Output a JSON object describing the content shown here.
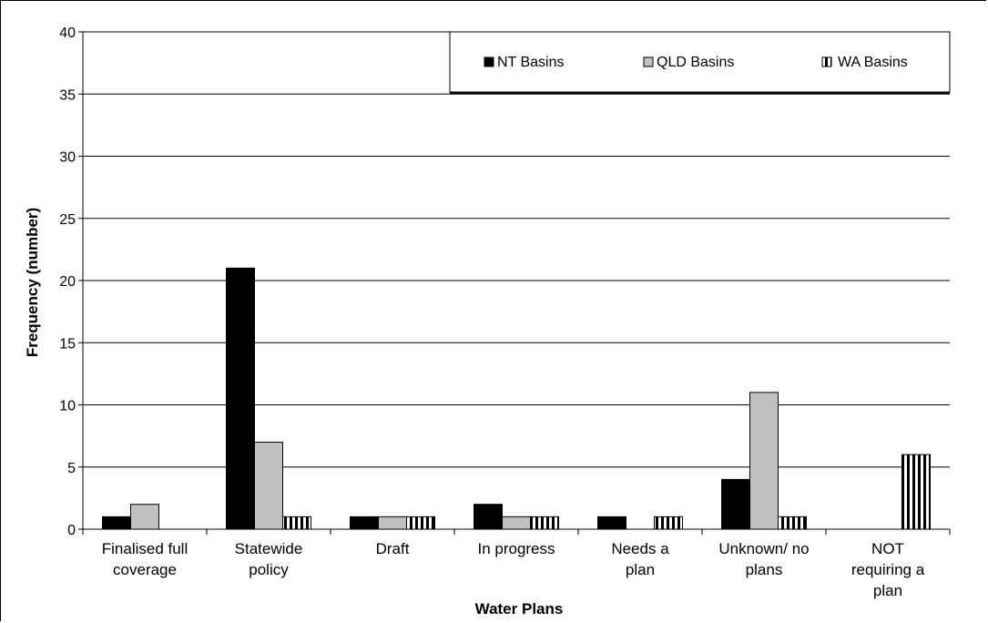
{
  "chart_data": {
    "type": "bar",
    "xlabel": "Water Plans",
    "ylabel": "Frequency (number)",
    "ylim": [
      0,
      40
    ],
    "yticks": [
      0,
      5,
      10,
      15,
      20,
      25,
      30,
      35,
      40
    ],
    "grid": true,
    "legend_position": "top-right",
    "categories": [
      [
        "Finalised full",
        "coverage"
      ],
      [
        "Statewide",
        "policy"
      ],
      [
        "Draft"
      ],
      [
        "In progress"
      ],
      [
        "Needs a",
        "plan"
      ],
      [
        "Unknown/ no",
        "plans"
      ],
      [
        "NOT",
        "requiring a",
        "plan"
      ]
    ],
    "series": [
      {
        "name": "NT Basins",
        "values": [
          1,
          21,
          1,
          2,
          1,
          4,
          0
        ],
        "color": "#000000",
        "pattern": "solid"
      },
      {
        "name": "QLD Basins",
        "values": [
          2,
          7,
          1,
          1,
          0,
          11,
          0
        ],
        "color": "#c0c0c0",
        "pattern": "solid"
      },
      {
        "name": "WA Basins",
        "values": [
          0,
          1,
          1,
          1,
          1,
          1,
          6
        ],
        "color": "#000000",
        "pattern": "vertical-stripes"
      }
    ]
  }
}
